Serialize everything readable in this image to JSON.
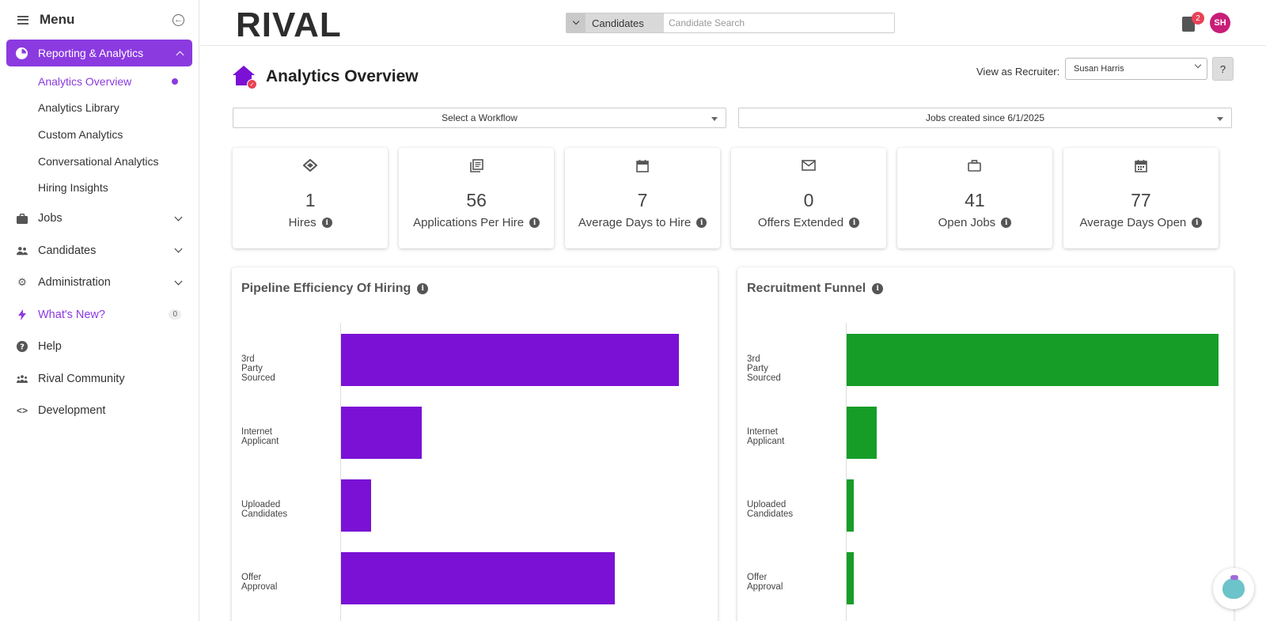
{
  "sidebar": {
    "menu_title": "Menu",
    "active_section": "Reporting & Analytics",
    "sub_items": [
      {
        "label": "Analytics Overview"
      },
      {
        "label": "Analytics Library"
      },
      {
        "label": "Custom Analytics"
      },
      {
        "label": "Conversational Analytics"
      },
      {
        "label": "Hiring Insights"
      }
    ],
    "items": [
      {
        "label": "Jobs",
        "icon": "briefcase-icon"
      },
      {
        "label": "Candidates",
        "icon": "people-icon"
      },
      {
        "label": "Administration",
        "icon": "gear-icon"
      },
      {
        "label": "What's New?",
        "icon": "bolt-icon",
        "badge": "0"
      },
      {
        "label": "Help",
        "icon": "help-icon"
      },
      {
        "label": "Rival Community",
        "icon": "community-icon"
      },
      {
        "label": "Development",
        "icon": "code-icon"
      }
    ]
  },
  "header": {
    "logo": "RIVAL",
    "search_category": "Candidates",
    "search_placeholder": "Candidate Search",
    "notification_count": "2",
    "avatar_initials": "SH"
  },
  "main": {
    "page_title": "Analytics Overview",
    "recruiter_label": "View as Recruiter:",
    "recruiter_value": "Susan Harris",
    "help_label": "?",
    "workflow_select": "Select a Workflow",
    "date_select": "Jobs created since 6/1/2025",
    "kpis": [
      {
        "value": "1",
        "label": "Hires",
        "icon": "handshake-icon"
      },
      {
        "value": "56",
        "label": "Applications Per Hire",
        "icon": "documents-icon"
      },
      {
        "value": "7",
        "label": "Average Days to Hire",
        "icon": "calendar-icon"
      },
      {
        "value": "0",
        "label": "Offers Extended",
        "icon": "envelope-icon"
      },
      {
        "value": "41",
        "label": "Open Jobs",
        "icon": "briefcase-icon"
      },
      {
        "value": "77",
        "label": "Average Days Open",
        "icon": "calendar-grid-icon"
      }
    ]
  },
  "colors": {
    "accent": "#8b3ae0",
    "pipeline_bar": "#7a11d4",
    "funnel_bar": "#169d28"
  },
  "chart_data": [
    {
      "type": "bar",
      "orientation": "horizontal",
      "title": "Pipeline Efficiency Of Hiring",
      "categories": [
        "3rd Party Sourced",
        "Internet Applicant",
        "Uploaded Candidates",
        "Offer Approval"
      ],
      "values": [
        100,
        24,
        9,
        81
      ],
      "color": "#7a11d4"
    },
    {
      "type": "bar",
      "orientation": "horizontal",
      "title": "Recruitment Funnel",
      "categories": [
        "3rd Party Sourced",
        "Internet Applicant",
        "Uploaded Candidates",
        "Offer Approval"
      ],
      "values": [
        100,
        8,
        2,
        2
      ],
      "color": "#169d28"
    }
  ]
}
